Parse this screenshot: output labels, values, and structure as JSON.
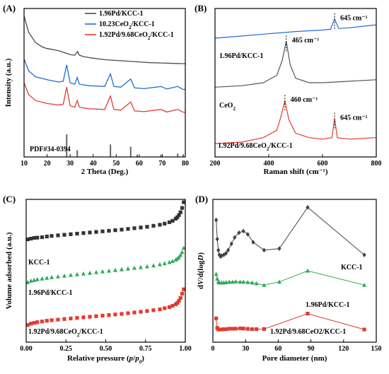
{
  "chart_data": [
    {
      "panel": "(A)",
      "type": "line",
      "xlabel": "2 Theta (Deg.)",
      "ylabel": "Intensity (a.u.)",
      "xlim": [
        10,
        80
      ],
      "xticks": [
        10,
        20,
        30,
        40,
        50,
        60,
        70,
        80
      ],
      "legend_position": "top-right",
      "series": [
        {
          "name": "1.96Pd/KCC-1",
          "color": "#4a4a4a",
          "x": [
            10,
            12,
            15,
            18,
            20,
            22,
            25,
            28,
            30,
            32,
            33.2,
            34,
            36,
            40,
            45,
            50,
            55,
            60,
            65,
            70,
            75,
            80
          ],
          "y": [
            0.95,
            0.84,
            0.77,
            0.74,
            0.73,
            0.725,
            0.715,
            0.7,
            0.69,
            0.685,
            0.71,
            0.685,
            0.675,
            0.665,
            0.655,
            0.65,
            0.645,
            0.64,
            0.635,
            0.633,
            0.63,
            0.628
          ]
        },
        {
          "name": "10.23CeO2/KCC-1",
          "color": "#1f6fd0",
          "x": [
            10,
            12,
            15,
            20,
            25,
            27,
            28.5,
            30,
            32,
            33.1,
            34,
            38,
            45,
            47.5,
            49,
            52,
            56.3,
            58,
            62,
            69.4,
            72,
            76.7,
            79,
            80
          ],
          "y": [
            0.66,
            0.58,
            0.54,
            0.52,
            0.505,
            0.51,
            0.62,
            0.5,
            0.49,
            0.535,
            0.49,
            0.48,
            0.475,
            0.56,
            0.475,
            0.47,
            0.525,
            0.465,
            0.46,
            0.475,
            0.458,
            0.475,
            0.455,
            0.455
          ]
        },
        {
          "name": "1.92Pd/9.68CeO2/KCC-1",
          "color": "#e03c31",
          "x": [
            10,
            12,
            15,
            20,
            25,
            27,
            28.5,
            30,
            32,
            33.1,
            34,
            38,
            45,
            47.5,
            49,
            52,
            56.3,
            58,
            62,
            69.4,
            72,
            76.7,
            79,
            80
          ],
          "y": [
            0.5,
            0.42,
            0.38,
            0.36,
            0.35,
            0.355,
            0.47,
            0.345,
            0.335,
            0.38,
            0.335,
            0.325,
            0.32,
            0.41,
            0.32,
            0.315,
            0.37,
            0.31,
            0.305,
            0.32,
            0.303,
            0.32,
            0.302,
            0.3
          ]
        }
      ],
      "reference": {
        "label": "PDF#34-0394",
        "x": [
          28.5,
          33.1,
          47.5,
          56.3,
          59.1,
          69.4,
          76.7,
          79.1
        ],
        "height": [
          1.0,
          0.3,
          0.55,
          0.45,
          0.1,
          0.1,
          0.15,
          0.12
        ]
      }
    },
    {
      "panel": "(B)",
      "type": "line",
      "xlabel": "Raman shift (cm⁻¹)",
      "xlim": [
        200,
        800
      ],
      "xticks": [
        200,
        400,
        600,
        800
      ],
      "series": [
        {
          "label": "1.96Pd/KCC-1",
          "color": "#1f6fd0",
          "x": [
            200,
            300,
            400,
            500,
            600,
            630,
            645,
            660,
            700,
            800
          ],
          "y": [
            0.8,
            0.815,
            0.83,
            0.845,
            0.855,
            0.86,
            0.93,
            0.865,
            0.87,
            0.89
          ],
          "peaks": [
            {
              "x": 645,
              "label": "645 cm⁻¹"
            }
          ]
        },
        {
          "label": "CeO2",
          "color": "#555555",
          "x": [
            200,
            300,
            380,
            430,
            450,
            465,
            480,
            500,
            550,
            600,
            700,
            800
          ],
          "y": [
            0.47,
            0.48,
            0.5,
            0.55,
            0.65,
            0.78,
            0.62,
            0.53,
            0.5,
            0.5,
            0.51,
            0.52
          ],
          "peaks": [
            {
              "x": 465,
              "label": "465 cm⁻¹"
            }
          ]
        },
        {
          "label": "1.92Pd/9.68CeO2/KCC-1",
          "color": "#e03c31",
          "x": [
            200,
            300,
            380,
            430,
            445,
            460,
            475,
            500,
            550,
            600,
            635,
            645,
            655,
            700,
            800
          ],
          "y": [
            0.09,
            0.1,
            0.13,
            0.18,
            0.27,
            0.38,
            0.25,
            0.16,
            0.13,
            0.12,
            0.13,
            0.26,
            0.13,
            0.12,
            0.13
          ],
          "peaks": [
            {
              "x": 460,
              "label": "460 cm⁻¹"
            },
            {
              "x": 645,
              "label": "645 cm⁻¹"
            }
          ]
        }
      ]
    },
    {
      "panel": "(C)",
      "type": "scatter",
      "xlabel": "Relative pressure (p/p0)",
      "ylabel": "Volume adsorbed (a.u.)",
      "xlim": [
        0.0,
        1.0
      ],
      "xticks": [
        "0.00",
        "0.25",
        "0.50",
        "0.75",
        "1.00"
      ],
      "series": [
        {
          "label": "KCC-1",
          "color": "#333333",
          "marker": "square",
          "x": [
            0.01,
            0.03,
            0.05,
            0.07,
            0.1,
            0.13,
            0.16,
            0.2,
            0.24,
            0.28,
            0.32,
            0.36,
            0.4,
            0.44,
            0.48,
            0.52,
            0.56,
            0.6,
            0.64,
            0.68,
            0.72,
            0.76,
            0.8,
            0.84,
            0.87,
            0.9,
            0.92,
            0.94,
            0.95,
            0.96,
            0.97,
            0.98,
            0.99
          ],
          "y": [
            0.72,
            0.725,
            0.73,
            0.732,
            0.735,
            0.74,
            0.744,
            0.748,
            0.752,
            0.756,
            0.76,
            0.764,
            0.768,
            0.772,
            0.776,
            0.78,
            0.784,
            0.788,
            0.793,
            0.798,
            0.803,
            0.808,
            0.815,
            0.822,
            0.83,
            0.84,
            0.85,
            0.865,
            0.875,
            0.89,
            0.91,
            0.94,
            0.98
          ]
        },
        {
          "label": "1.96Pd/KCC-1",
          "color": "#2eaa57",
          "marker": "triangle",
          "x": [
            0.01,
            0.03,
            0.05,
            0.07,
            0.1,
            0.13,
            0.16,
            0.2,
            0.24,
            0.28,
            0.32,
            0.36,
            0.4,
            0.44,
            0.48,
            0.52,
            0.56,
            0.6,
            0.64,
            0.68,
            0.72,
            0.76,
            0.8,
            0.84,
            0.87,
            0.9,
            0.92,
            0.94,
            0.95,
            0.96,
            0.97,
            0.98,
            0.99
          ],
          "y": [
            0.42,
            0.43,
            0.435,
            0.44,
            0.445,
            0.45,
            0.455,
            0.46,
            0.465,
            0.47,
            0.475,
            0.48,
            0.485,
            0.49,
            0.495,
            0.5,
            0.505,
            0.51,
            0.515,
            0.52,
            0.525,
            0.53,
            0.537,
            0.545,
            0.552,
            0.56,
            0.568,
            0.578,
            0.585,
            0.595,
            0.61,
            0.63,
            0.66
          ]
        },
        {
          "label": "1.92Pd/9.68CeO2/KCC-1",
          "color": "#e03c31",
          "marker": "square",
          "x": [
            0.01,
            0.03,
            0.05,
            0.07,
            0.1,
            0.13,
            0.16,
            0.2,
            0.24,
            0.28,
            0.32,
            0.36,
            0.4,
            0.44,
            0.48,
            0.52,
            0.56,
            0.6,
            0.64,
            0.68,
            0.72,
            0.76,
            0.8,
            0.84,
            0.87,
            0.9,
            0.92,
            0.94,
            0.95,
            0.96,
            0.97,
            0.98,
            0.99
          ],
          "y": [
            0.12,
            0.13,
            0.135,
            0.14,
            0.145,
            0.15,
            0.154,
            0.158,
            0.162,
            0.166,
            0.17,
            0.174,
            0.178,
            0.182,
            0.186,
            0.19,
            0.194,
            0.198,
            0.203,
            0.208,
            0.213,
            0.218,
            0.224,
            0.23,
            0.238,
            0.246,
            0.255,
            0.265,
            0.275,
            0.29,
            0.31,
            0.34,
            0.37
          ]
        }
      ]
    },
    {
      "panel": "(D)",
      "type": "line",
      "xlabel": "Pore diameter (nm)",
      "ylabel": "dV/d(logD)",
      "xlim": [
        0,
        150
      ],
      "xticks": [
        0,
        30,
        60,
        90,
        120,
        150
      ],
      "series": [
        {
          "label": "KCC-1",
          "color": "#444444",
          "marker": "diamond",
          "x": [
            3,
            4,
            5,
            6,
            7,
            8,
            10,
            12,
            14,
            17,
            20,
            24,
            28,
            32,
            37,
            47,
            61,
            87,
            139
          ],
          "y": [
            0.92,
            0.8,
            0.73,
            0.7,
            0.69,
            0.695,
            0.7,
            0.71,
            0.73,
            0.77,
            0.81,
            0.84,
            0.85,
            0.83,
            0.78,
            0.73,
            0.74,
            1.0,
            0.7
          ]
        },
        {
          "label": "1.96Pd/KCC-1",
          "color": "#2eaa57",
          "marker": "triangle",
          "x": [
            3,
            4,
            5,
            6,
            8,
            10,
            12,
            15,
            18,
            21,
            25,
            28,
            32,
            36,
            40,
            47,
            61,
            87,
            139
          ],
          "y": [
            0.58,
            0.55,
            0.53,
            0.525,
            0.525,
            0.525,
            0.527,
            0.53,
            0.53,
            0.532,
            0.53,
            0.53,
            0.528,
            0.525,
            0.52,
            0.51,
            0.53,
            0.6,
            0.51
          ]
        },
        {
          "label": "1.92Pd/9.68CeO2/KCC-1",
          "color": "#e03c31",
          "marker": "square",
          "x": [
            3,
            4,
            5,
            6,
            8,
            10,
            12,
            15,
            18,
            21,
            25,
            28,
            32,
            36,
            40,
            47,
            87,
            139
          ],
          "y": [
            0.3,
            0.24,
            0.23,
            0.23,
            0.23,
            0.232,
            0.232,
            0.235,
            0.235,
            0.235,
            0.237,
            0.236,
            0.234,
            0.232,
            0.232,
            0.233,
            0.33,
            0.23
          ]
        }
      ]
    }
  ]
}
